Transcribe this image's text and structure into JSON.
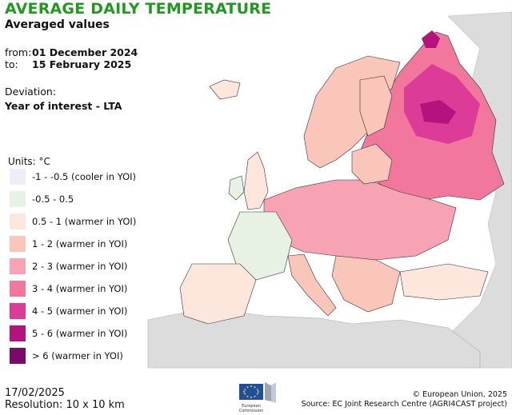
{
  "header": {
    "title": "AVERAGE DAILY TEMPERATURE",
    "subtitle": "Averaged values",
    "from_label": "from:",
    "from_value": "01 December 2024",
    "to_label": "to:",
    "to_value": "15 February 2025",
    "deviation_label": "Deviation:",
    "deviation_value": "Year of interest - LTA"
  },
  "legend": {
    "units": "Units: °C",
    "items": [
      {
        "label": "-1 - -0.5 (cooler in YOI)",
        "color": "#eeeef6"
      },
      {
        "label": "-0.5 - 0.5",
        "color": "#e8f2e4"
      },
      {
        "label": "0.5 - 1 (warmer in YOI)",
        "color": "#fde6dc"
      },
      {
        "label": "1 - 2 (warmer in YOI)",
        "color": "#fbc6ba"
      },
      {
        "label": "2 - 3 (warmer in YOI)",
        "color": "#f7a3b4"
      },
      {
        "label": "3 - 4 (warmer in YOI)",
        "color": "#f2779c"
      },
      {
        "label": "4 - 5 (warmer in YOI)",
        "color": "#dc3c98"
      },
      {
        "label": "5 - 6 (warmer in YOI)",
        "color": "#b4127c"
      },
      {
        "label": "> 6 (warmer in YOI)",
        "color": "#7a0a6a"
      }
    ]
  },
  "footer": {
    "date": "17/02/2025",
    "resolution": "Resolution: 10 x 10 km",
    "copyright": "© European Union, 2025",
    "source": "Source: EC Joint Research Centre (AGRI4CAST project)",
    "logo_line1": "European",
    "logo_line2": "Commission"
  },
  "colors": {
    "title_green": "#1f9a1f",
    "sea": "#ffffff",
    "outside_land": "#dcdcdc"
  }
}
